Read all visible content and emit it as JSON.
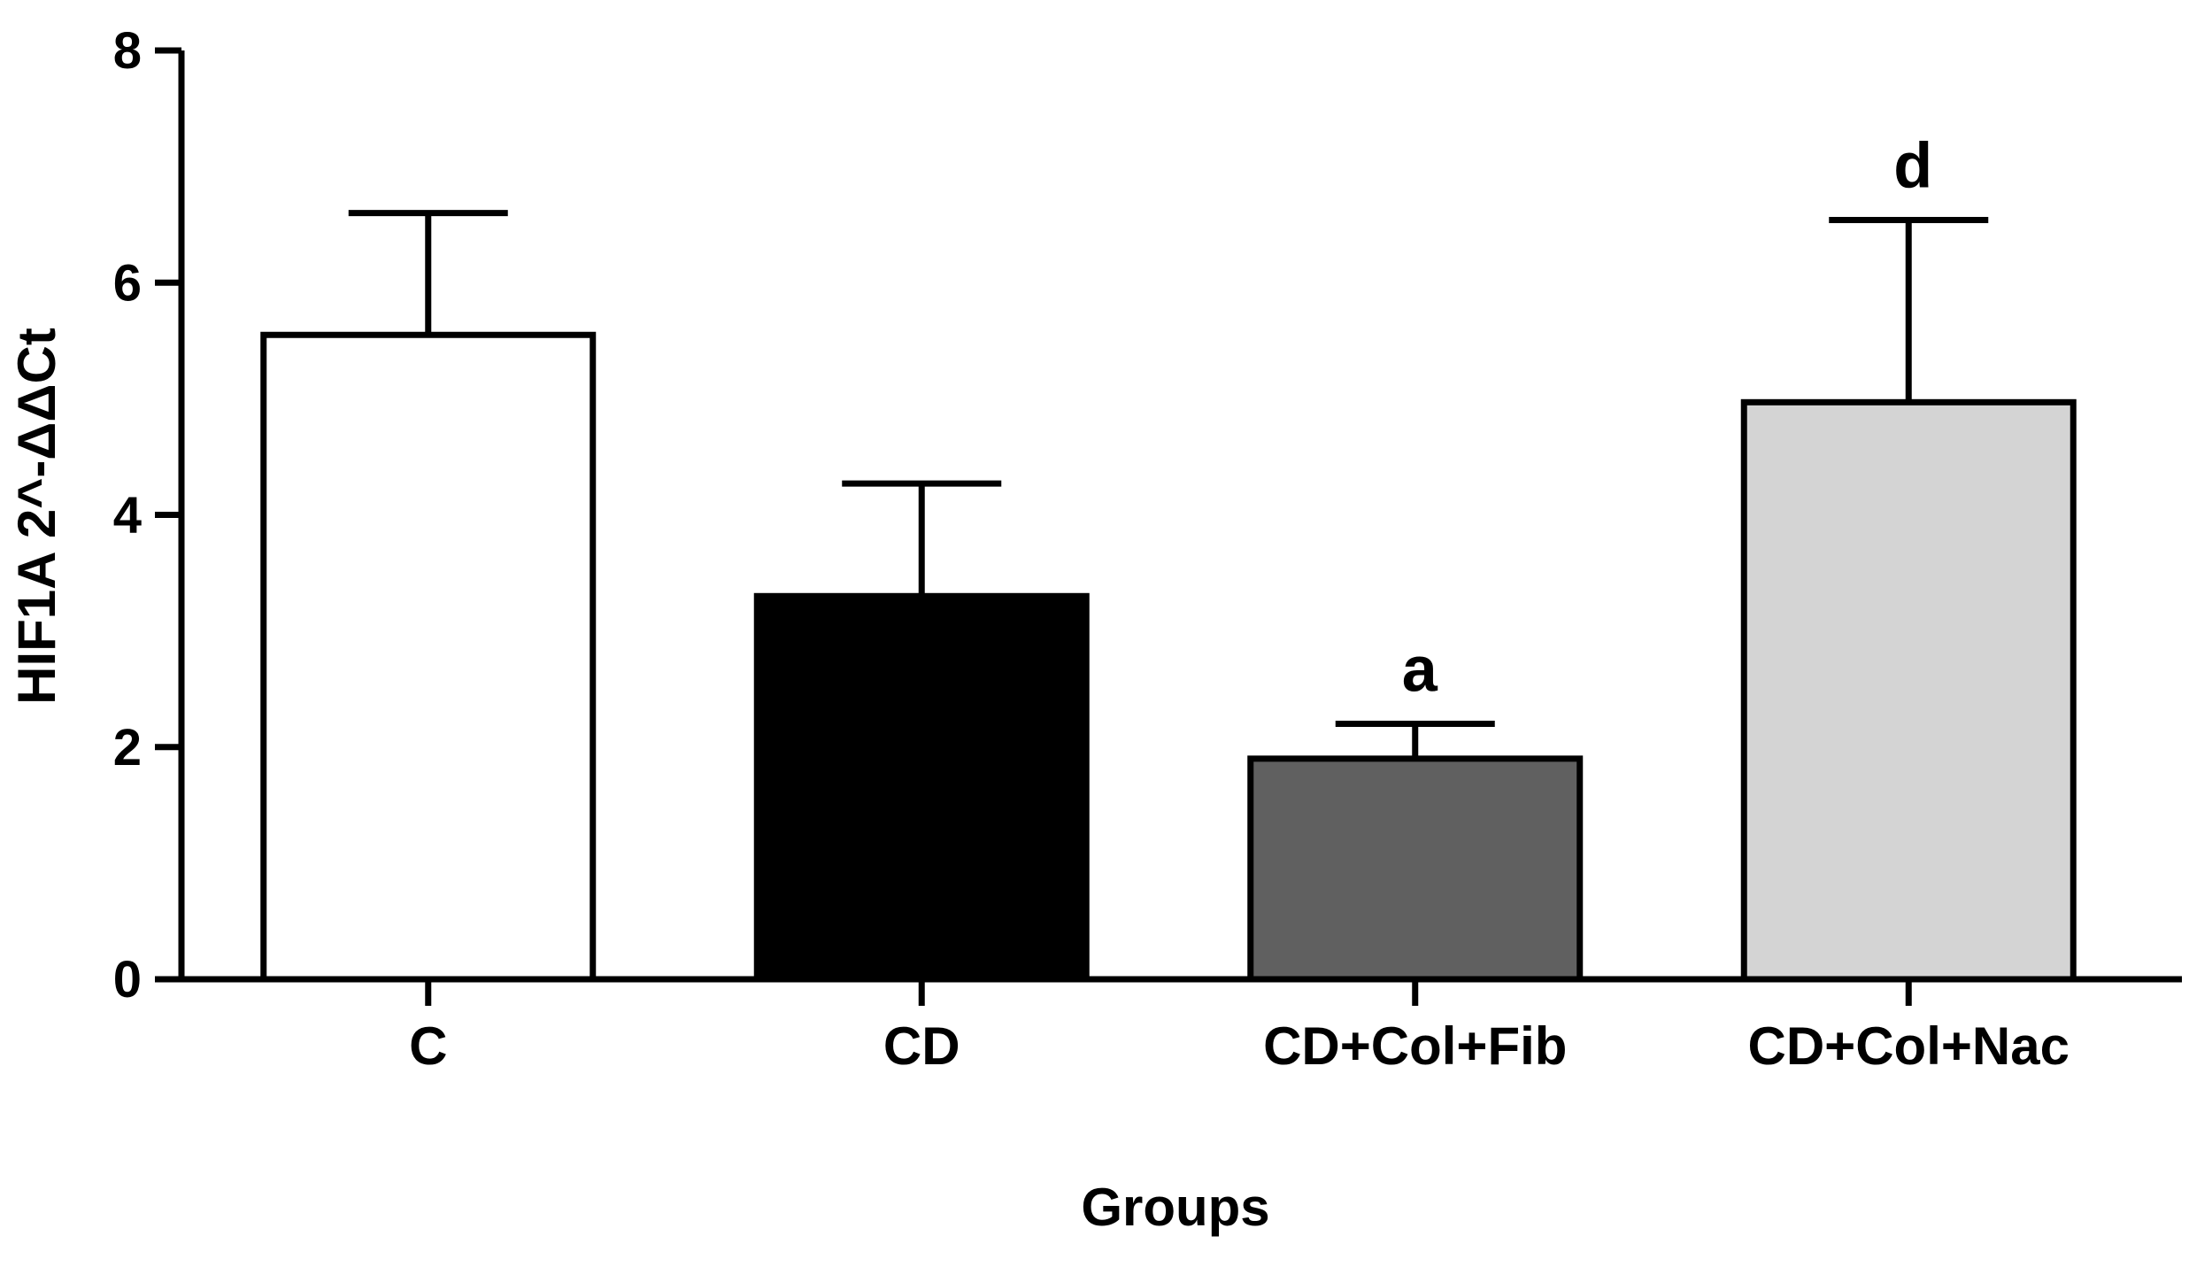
{
  "chart_data": {
    "type": "bar",
    "title": "",
    "xlabel": "Groups",
    "ylabel": "HIF1A 2^-ΔΔCt",
    "ylim": [
      0,
      8
    ],
    "yticks": [
      0,
      2,
      4,
      6,
      8
    ],
    "grid": false,
    "categories": [
      "C",
      "CD",
      "CD+Col+Fib",
      "CD+Col+Nac"
    ],
    "values": [
      5.55,
      3.3,
      1.9,
      4.97
    ],
    "errors": [
      1.05,
      0.97,
      0.3,
      1.57
    ],
    "colors": [
      "#ffffff",
      "#000000",
      "#606060",
      "#d4d4d4"
    ],
    "annotations": [
      "",
      "",
      "a",
      "d"
    ]
  }
}
